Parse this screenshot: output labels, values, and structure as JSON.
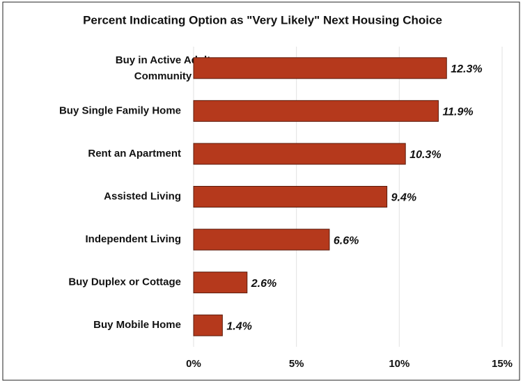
{
  "chart_data": {
    "type": "bar",
    "orientation": "horizontal",
    "title": "Percent Indicating Option as \"Very Likely\" Next Housing Choice",
    "categories": [
      "Buy in Active Adult Community",
      "Buy Single Family Home",
      "Rent an Apartment",
      "Assisted Living",
      "Independent Living",
      "Buy Duplex or Cottage",
      "Buy Mobile Home"
    ],
    "values": [
      12.3,
      11.9,
      10.3,
      9.4,
      6.6,
      2.6,
      1.4
    ],
    "value_labels": [
      "12.3%",
      "11.9%",
      "10.3%",
      "9.4%",
      "6.6%",
      "2.6%",
      "1.4%"
    ],
    "color": "#b5391c",
    "xlim": [
      0,
      15
    ],
    "xticks": [
      {
        "value": 0,
        "label": "0%"
      },
      {
        "value": 5,
        "label": "5%"
      },
      {
        "value": 10,
        "label": "10%"
      },
      {
        "value": 15,
        "label": "15%"
      }
    ],
    "grid": true
  }
}
